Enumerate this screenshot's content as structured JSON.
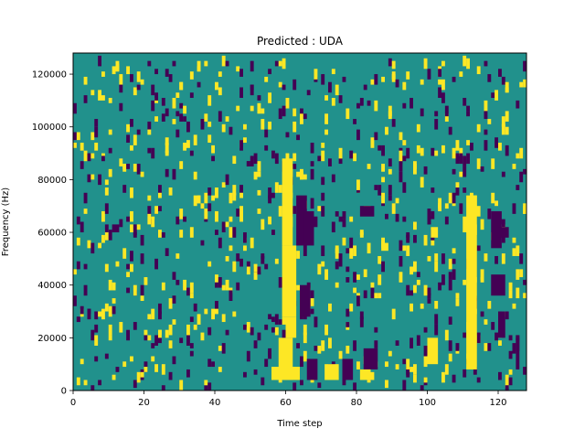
{
  "chart_data": {
    "type": "heatmap",
    "title": "Predicted : UDA",
    "xlabel": "Time step",
    "ylabel": "Frequency (Hz)",
    "xlim": [
      0,
      128
    ],
    "ylim": [
      0,
      128000
    ],
    "xticks": [
      0,
      20,
      40,
      60,
      80,
      100,
      120
    ],
    "yticks": [
      0,
      20000,
      40000,
      60000,
      80000,
      100000,
      120000
    ],
    "xtick_labels": [
      "0",
      "20",
      "40",
      "60",
      "80",
      "100",
      "120"
    ],
    "ytick_labels": [
      "0",
      "20000",
      "40000",
      "60000",
      "80000",
      "100000",
      "120000"
    ],
    "grid": false,
    "n_time_steps": 128,
    "n_freq_bins": 128,
    "freq_bin_hz": 1000,
    "class_colors": {
      "background": "#21918c",
      "low": "#440154",
      "high": "#fde725"
    },
    "default_class": "background",
    "regions": [
      {
        "class": "high",
        "t": [
          59,
          62
        ],
        "f": [
          55000,
          88000
        ]
      },
      {
        "class": "high",
        "t": [
          59,
          63
        ],
        "f": [
          28000,
          55000
        ]
      },
      {
        "class": "high",
        "t": [
          60,
          63
        ],
        "f": [
          20000,
          28000
        ]
      },
      {
        "class": "high",
        "t": [
          58,
          62
        ],
        "f": [
          4000,
          20000
        ]
      },
      {
        "class": "high",
        "t": [
          56,
          64
        ],
        "f": [
          4000,
          9000
        ]
      },
      {
        "class": "low",
        "t": [
          63,
          66
        ],
        "f": [
          55000,
          74000
        ]
      },
      {
        "class": "low",
        "t": [
          65,
          68
        ],
        "f": [
          55000,
          68000
        ]
      },
      {
        "class": "low",
        "t": [
          64,
          67
        ],
        "f": [
          28000,
          40000
        ]
      },
      {
        "class": "low",
        "t": [
          66,
          69
        ],
        "f": [
          4000,
          12000
        ]
      },
      {
        "class": "high",
        "t": [
          71,
          75
        ],
        "f": [
          4000,
          10000
        ]
      },
      {
        "class": "low",
        "t": [
          76,
          79
        ],
        "f": [
          4000,
          12000
        ]
      },
      {
        "class": "low",
        "t": [
          82,
          86
        ],
        "f": [
          8000,
          16000
        ]
      },
      {
        "class": "high",
        "t": [
          81,
          84
        ],
        "f": [
          4000,
          8000
        ]
      },
      {
        "class": "low",
        "t": [
          81,
          85
        ],
        "f": [
          66000,
          70000
        ]
      },
      {
        "class": "high",
        "t": [
          100,
          103
        ],
        "f": [
          10000,
          20000
        ]
      },
      {
        "class": "high",
        "t": [
          101,
          103
        ],
        "f": [
          58000,
          62000
        ]
      },
      {
        "class": "high",
        "t": [
          111,
          114
        ],
        "f": [
          8000,
          74000
        ]
      },
      {
        "class": "high",
        "t": [
          110,
          112
        ],
        "f": [
          60000,
          66000
        ]
      },
      {
        "class": "high",
        "t": [
          112,
          115
        ],
        "f": [
          66000,
          70000
        ]
      },
      {
        "class": "low",
        "t": [
          118,
          121
        ],
        "f": [
          54000,
          68000
        ]
      },
      {
        "class": "low",
        "t": [
          120,
          123
        ],
        "f": [
          58000,
          62000
        ]
      },
      {
        "class": "low",
        "t": [
          118,
          122
        ],
        "f": [
          36000,
          44000
        ]
      },
      {
        "class": "low",
        "t": [
          120,
          122
        ],
        "f": [
          20000,
          30000
        ]
      },
      {
        "class": "low",
        "t": [
          125,
          126
        ],
        "f": [
          8000,
          20000
        ]
      }
    ]
  }
}
